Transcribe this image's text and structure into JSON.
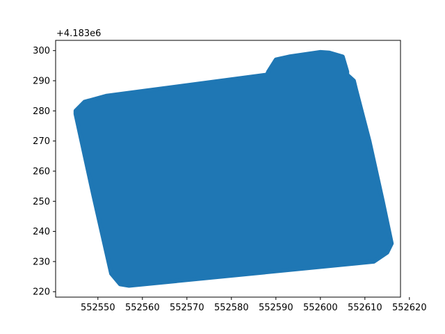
{
  "chart_data": {
    "type": "area",
    "title": "",
    "xlabel": "",
    "ylabel": "",
    "grid": false,
    "legend": "none",
    "y_offset_label": "+4.183e6",
    "xlim": [
      552540.5,
      552618.0
    ],
    "ylim": [
      218.2,
      303.4
    ],
    "x_ticks": [
      552550,
      552560,
      552570,
      552580,
      552590,
      552600,
      552610,
      552620
    ],
    "x_tick_labels": [
      "552550",
      "552560",
      "552570",
      "552580",
      "552590",
      "552600",
      "552610",
      "552620"
    ],
    "y_ticks": [
      220,
      230,
      240,
      250,
      260,
      270,
      280,
      290,
      300
    ],
    "y_tick_labels": [
      "220",
      "230",
      "240",
      "250",
      "260",
      "270",
      "280",
      "290",
      "300"
    ],
    "series": [
      {
        "fill_color": "#1f77b4",
        "polygon": [
          [
            552545,
            280
          ],
          [
            552547,
            283
          ],
          [
            552552,
            285
          ],
          [
            552588,
            292
          ],
          [
            552588.3,
            293
          ],
          [
            552590,
            297
          ],
          [
            552593,
            298
          ],
          [
            552600,
            299.5
          ],
          [
            552602,
            299.3
          ],
          [
            552605,
            298
          ],
          [
            552606,
            293
          ],
          [
            552606,
            292
          ],
          [
            552607.5,
            290
          ],
          [
            552608,
            287
          ],
          [
            552611,
            270
          ],
          [
            552614,
            250
          ],
          [
            552616,
            236
          ],
          [
            552615,
            233
          ],
          [
            552612,
            230
          ],
          [
            552557,
            222
          ],
          [
            552555,
            222.5
          ],
          [
            552553,
            226
          ],
          [
            552549,
            252
          ],
          [
            552545,
            279
          ]
        ]
      }
    ]
  }
}
